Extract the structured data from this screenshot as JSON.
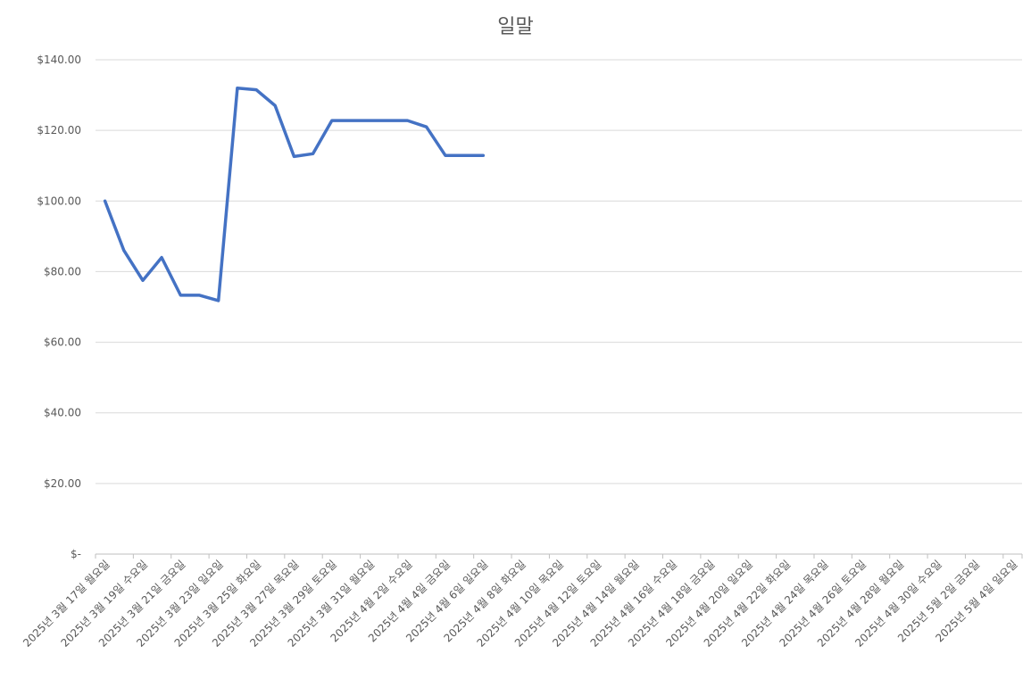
{
  "chart_data": {
    "type": "line",
    "title": "일말",
    "xlabel": "",
    "ylabel": "",
    "ylim": [
      0,
      140
    ],
    "y_ticks": [
      "$-",
      "$20.00",
      "$40.00",
      "$60.00",
      "$80.00",
      "$100.00",
      "$120.00",
      "$140.00"
    ],
    "grid": true,
    "line_color": "#4472C4",
    "x_tick_labels": [
      "2025년 3월 17일 월요일",
      "2025년 3월 19일 수요일",
      "2025년 3월 21일 금요일",
      "2025년 3월 23일 일요일",
      "2025년 3월 25일 화요일",
      "2025년 3월 27일 목요일",
      "2025년 3월 29일 토요일",
      "2025년 3월 31일 월요일",
      "2025년 4월 2일 수요일",
      "2025년 4월 4일 금요일",
      "2025년 4월 6일 일요일",
      "2025년 4월 8일 화요일",
      "2025년 4월 10일 목요일",
      "2025년 4월 12일 토요일",
      "2025년 4월 14일 월요일",
      "2025년 4월 16일 수요일",
      "2025년 4월 18일 금요일",
      "2025년 4월 20일 일요일",
      "2025년 4월 22일 화요일",
      "2025년 4월 24일 목요일",
      "2025년 4월 26일 토요일",
      "2025년 4월 28일 월요일",
      "2025년 4월 30일 수요일",
      "2025년 5월 2일 금요일",
      "2025년 5월 4일 일요일"
    ],
    "series": [
      {
        "x": [
          "2025-03-17",
          "2025-03-18",
          "2025-03-19",
          "2025-03-20",
          "2025-03-21",
          "2025-03-22",
          "2025-03-23",
          "2025-03-24",
          "2025-03-25",
          "2025-03-26",
          "2025-03-27",
          "2025-03-28",
          "2025-03-29",
          "2025-03-30",
          "2025-03-31",
          "2025-04-01",
          "2025-04-02",
          "2025-04-03",
          "2025-04-04",
          "2025-04-05",
          "2025-04-06"
        ],
        "values": [
          100.0,
          86.0,
          77.5,
          84.0,
          73.3,
          73.3,
          71.8,
          132.0,
          131.5,
          127.0,
          112.6,
          113.4,
          122.8,
          122.8,
          122.8,
          122.8,
          122.8,
          121.0,
          112.9,
          112.9,
          112.9
        ]
      }
    ]
  }
}
